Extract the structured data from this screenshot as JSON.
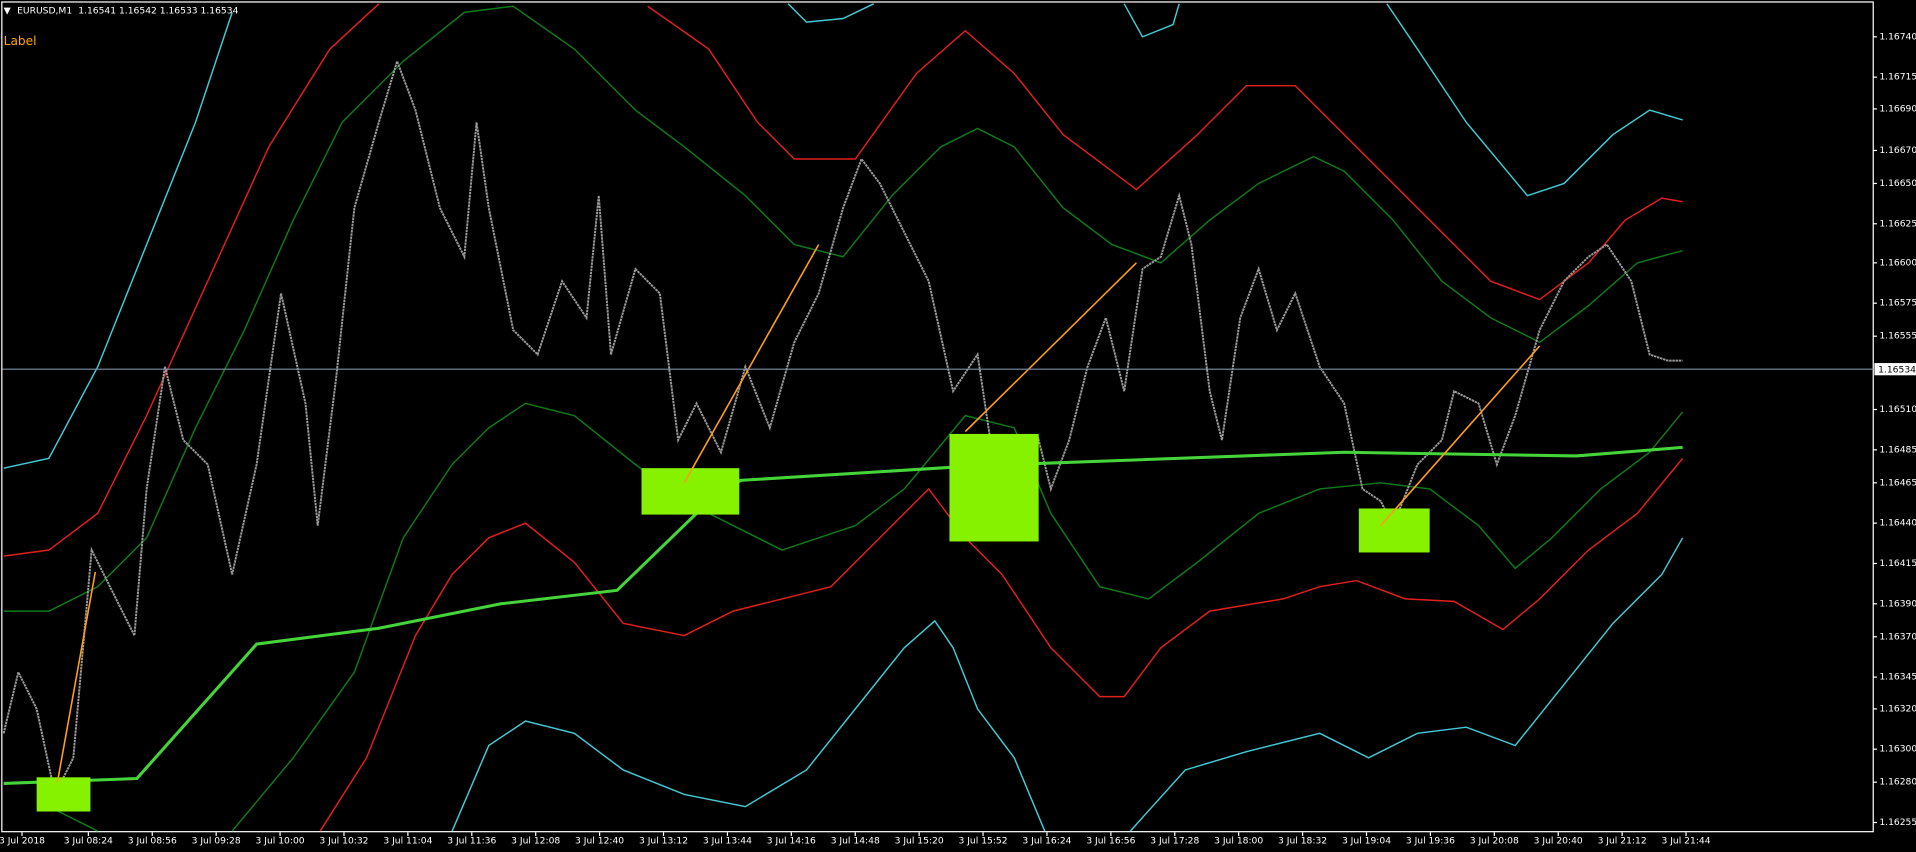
{
  "header": {
    "symbol": "EURUSD,M1",
    "quote": "1.16541 1.16542 1.16533 1.16534"
  },
  "label": "Label",
  "current_price": "1.16534",
  "price_labels": [
    "1.16740",
    "1.16715",
    "1.16690",
    "1.16670",
    "1.16650",
    "1.16625",
    "1.16600",
    "1.16575",
    "1.16555",
    "1.16510",
    "1.16485",
    "1.16465",
    "1.16440",
    "1.16415",
    "1.16390",
    "1.16370",
    "1.16345",
    "1.16320",
    "1.16300",
    "1.16280",
    "1.16255"
  ],
  "time_labels": [
    "3 Jul 2018",
    "3 Jul 08:24",
    "3 Jul 08:56",
    "3 Jul 09:28",
    "3 Jul 10:00",
    "3 Jul 10:32",
    "3 Jul 11:04",
    "3 Jul 11:36",
    "3 Jul 12:08",
    "3 Jul 12:40",
    "3 Jul 13:12",
    "3 Jul 13:44",
    "3 Jul 14:16",
    "3 Jul 14:48",
    "3 Jul 15:20",
    "3 Jul 15:52",
    "3 Jul 16:24",
    "3 Jul 16:56",
    "3 Jul 17:28",
    "3 Jul 18:00",
    "3 Jul 18:32",
    "3 Jul 19:04",
    "3 Jul 19:36",
    "3 Jul 20:08",
    "3 Jul 20:40",
    "3 Jul 21:12",
    "3 Jul 21:44"
  ]
}
